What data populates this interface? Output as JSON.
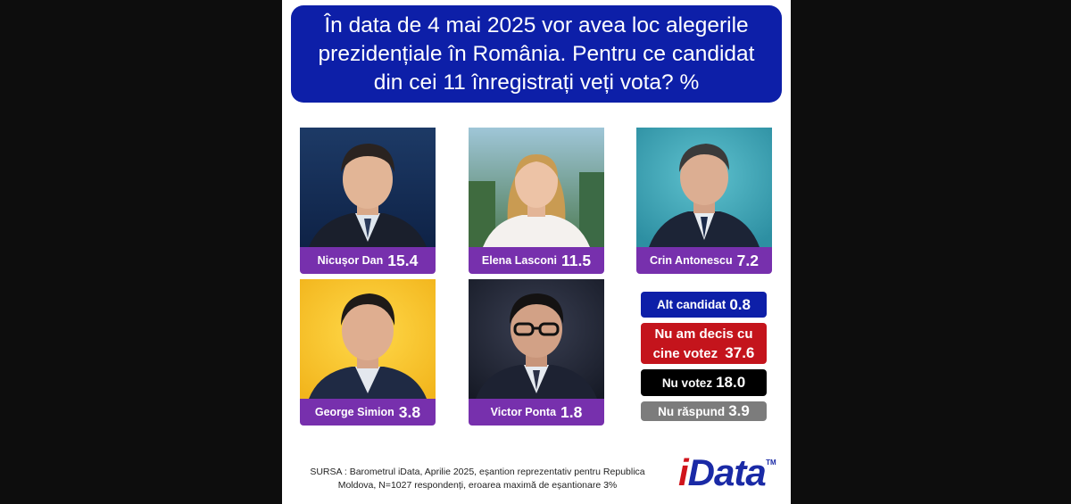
{
  "title": "În data de 4 mai 2025 vor avea loc alegerile prezidențiale în România. Pentru ce candidat din cei 11 înregistrați veți vota? %",
  "candidates": [
    {
      "name": "Nicușor Dan",
      "value": "15.4"
    },
    {
      "name": "Elena Lasconi",
      "value": "11.5"
    },
    {
      "name": "Crin Antonescu",
      "value": "7.2"
    },
    {
      "name": "George Simion",
      "value": "3.8"
    },
    {
      "name": "Victor Ponta",
      "value": "1.8"
    }
  ],
  "options": {
    "alt": {
      "label": "Alt candidat",
      "value": "0.8"
    },
    "nu_decis": {
      "line1": "Nu am decis cu",
      "line2": "cine votez",
      "value": "37.6"
    },
    "nu_votez": {
      "label": "Nu votez",
      "value": "18.0"
    },
    "nu_raspund": {
      "label": "Nu răspund",
      "value": "3.9"
    }
  },
  "source": "SURSA : Barometrul iData, Aprilie 2025, eșantion reprezentativ pentru Republica Moldova, N=1027 respondenți, eroarea maximă de eșantionare 3%",
  "logo": {
    "first": "i",
    "rest": "Data",
    "tm": "TM"
  },
  "colors": {
    "title_bg": "#0d1fa8",
    "candidate_label": "#7730ad",
    "alt": "#0d1fa8",
    "nu_decis": "#c4141c",
    "nu_votez": "#000000",
    "nu_raspund": "#7c7c7c"
  },
  "chart_data": {
    "type": "table",
    "title": "În data de 4 mai 2025 vor avea loc alegerile prezidențiale în România. Pentru ce candidat din cei 11 înregistrați veți vota? %",
    "categories": [
      "Nicușor Dan",
      "Elena Lasconi",
      "Crin Antonescu",
      "George Simion",
      "Victor Ponta",
      "Alt candidat",
      "Nu am decis cu cine votez",
      "Nu votez",
      "Nu răspund"
    ],
    "values": [
      15.4,
      11.5,
      7.2,
      3.8,
      1.8,
      0.8,
      37.6,
      18.0,
      3.9
    ]
  }
}
